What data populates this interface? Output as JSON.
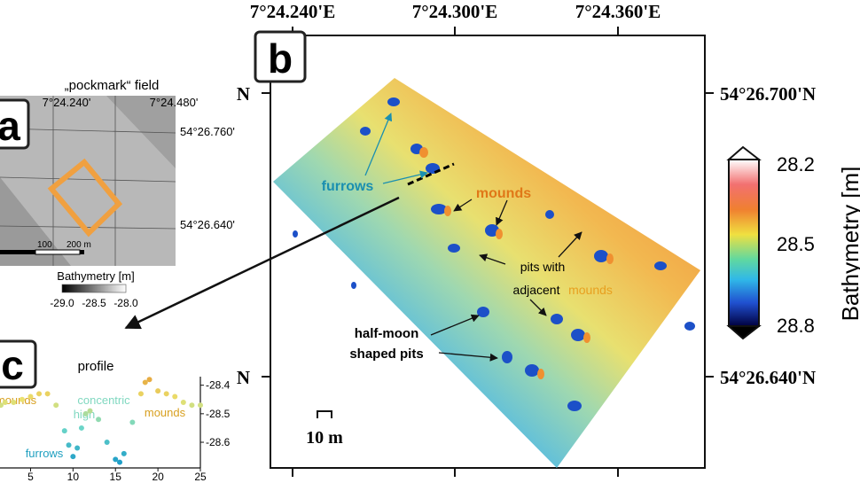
{
  "panel_a": {
    "label": "a",
    "title": "„pockmark“ field",
    "lon_labels": [
      "7°24.240'",
      "7°24.480'"
    ],
    "lat_labels": [
      "54°26.760'",
      "54°26.640'"
    ],
    "scale_labels": [
      "100",
      "200 m"
    ],
    "colorbar_title": "Bathymetry [m]",
    "colorbar_ticks": [
      "-29.0",
      "-28.5",
      "-28.0"
    ]
  },
  "panel_b": {
    "label": "b",
    "lon_labels": [
      "7°24.240'E",
      "7°24.300'E",
      "7°24.360'E"
    ],
    "lat_left": [
      "N",
      "N"
    ],
    "lat_right": [
      "54°26.700'N",
      "54°26.640'N"
    ],
    "annotations": {
      "furrows": "furrows",
      "mounds": "mounds",
      "pits_line1": "pits with",
      "pits_line2": "adjacent",
      "pits_line2_mounds": "mounds",
      "halfmoon_line1": "half-moon",
      "halfmoon_line2": "shaped pits"
    },
    "scale": "10 m",
    "colorbar": {
      "title": "Bathymetry [m]",
      "ticks": [
        "28.2",
        "28.5",
        "28.8"
      ]
    }
  },
  "panel_c": {
    "label": "c",
    "title": "profile",
    "annotations": [
      "mounds",
      "concentric",
      "high",
      "mounds",
      "furrows"
    ],
    "x": [
      1.5,
      2,
      3,
      4,
      5,
      6,
      7,
      8,
      9,
      9.5,
      10,
      10.5,
      11,
      11.5,
      12,
      13,
      14,
      15,
      15.5,
      16,
      17,
      18,
      18.5,
      19,
      20,
      21,
      22,
      23,
      24,
      25
    ],
    "y": [
      -28.47,
      -28.46,
      -28.46,
      -28.45,
      -28.44,
      -28.43,
      -28.43,
      -28.47,
      -28.56,
      -28.61,
      -28.65,
      -28.62,
      -28.55,
      -28.5,
      -28.49,
      -28.52,
      -28.6,
      -28.66,
      -28.67,
      -28.64,
      -28.53,
      -28.43,
      -28.39,
      -28.38,
      -28.42,
      -28.43,
      -28.44,
      -28.46,
      -28.47,
      -28.47
    ],
    "xlim": [
      1.4,
      25
    ],
    "ylim": [
      -28.69,
      -28.37
    ],
    "xticks": [
      5,
      10,
      15,
      20,
      25
    ],
    "yticks": [
      -28.4,
      -28.5,
      -28.6
    ]
  }
}
